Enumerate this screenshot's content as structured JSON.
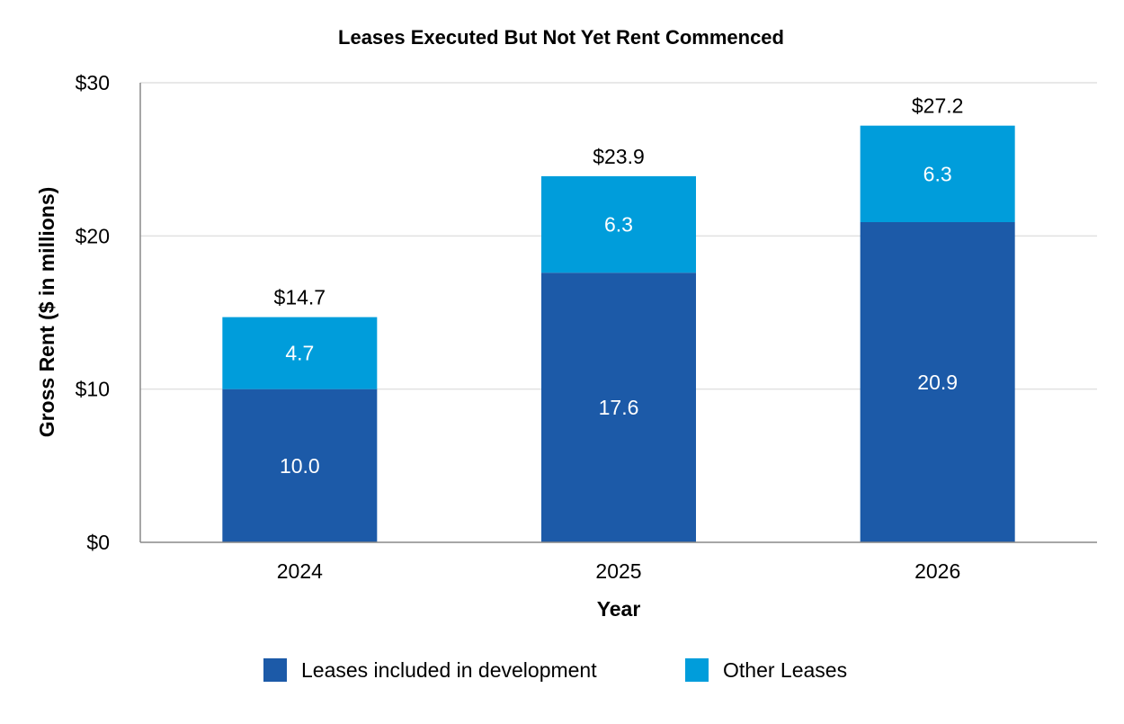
{
  "chart_data": {
    "type": "bar",
    "stacked": true,
    "title": "Leases Executed But Not Yet Rent Commenced",
    "xlabel": "Year",
    "ylabel": "Gross Rent ($ in millions)",
    "categories": [
      "2024",
      "2025",
      "2026"
    ],
    "ylim": [
      0,
      30
    ],
    "yticks": [
      0,
      10,
      20,
      30
    ],
    "ytick_labels": [
      "$0",
      "$10",
      "$20",
      "$30"
    ],
    "grid": true,
    "legend_position": "bottom",
    "series": [
      {
        "name": "Leases included in development",
        "values": [
          10.0,
          17.6,
          20.9
        ],
        "labels": [
          "10.0",
          "17.6",
          "20.9"
        ],
        "color": "#1c5aa8"
      },
      {
        "name": "Other Leases",
        "values": [
          4.7,
          6.3,
          6.3
        ],
        "labels": [
          "4.7",
          "6.3",
          "6.3"
        ],
        "color": "#009ddb"
      }
    ],
    "totals": [
      14.7,
      23.9,
      27.2
    ],
    "total_labels": [
      "$14.7",
      "$23.9",
      "$27.2"
    ]
  }
}
